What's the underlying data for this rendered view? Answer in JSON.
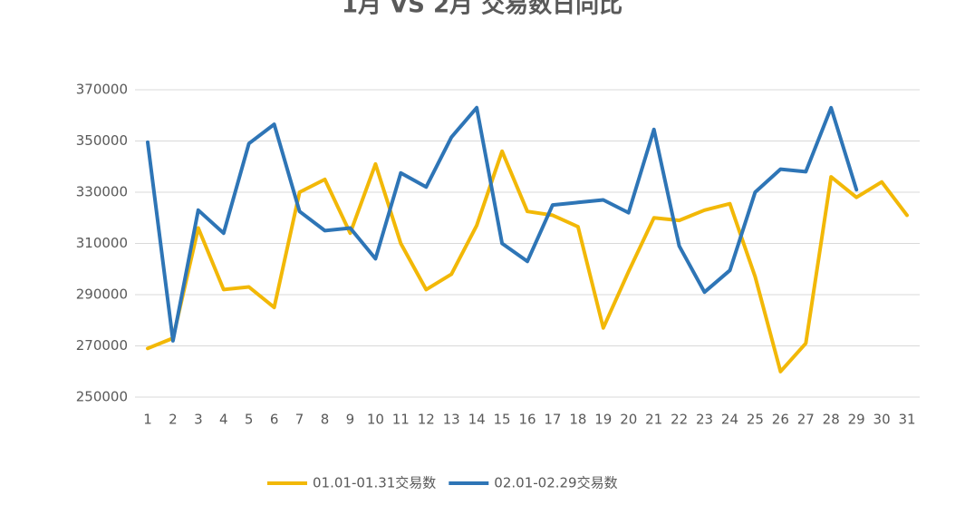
{
  "chart_data": {
    "type": "line",
    "title": "1月 VS 2月 交易数日同比",
    "categories": [
      "1",
      "2",
      "3",
      "4",
      "5",
      "6",
      "7",
      "8",
      "9",
      "10",
      "11",
      "12",
      "13",
      "14",
      "15",
      "16",
      "17",
      "18",
      "19",
      "20",
      "21",
      "22",
      "23",
      "24",
      "25",
      "26",
      "27",
      "28",
      "29",
      "30",
      "31"
    ],
    "series": [
      {
        "name": "01.01-01.31交易数",
        "color": "#f2b807",
        "values": [
          269000,
          273000,
          316000,
          292000,
          293000,
          285000,
          330000,
          335000,
          314000,
          341000,
          310000,
          292000,
          298000,
          317000,
          346000,
          322500,
          321000,
          316500,
          277000,
          299000,
          320000,
          319000,
          323000,
          325500,
          297000,
          260000,
          271000,
          336000,
          328000,
          334000,
          321000
        ]
      },
      {
        "name": "02.01-02.29交易数",
        "color": "#2e75b6",
        "values": [
          349500,
          272000,
          323000,
          314000,
          349000,
          356500,
          322500,
          315000,
          316000,
          304000,
          337500,
          332000,
          351500,
          363000,
          310000,
          303000,
          325000,
          326000,
          327000,
          322000,
          354500,
          309000,
          291000,
          299500,
          330000,
          339000,
          338000,
          363000,
          331000,
          null,
          null
        ]
      }
    ],
    "ylim": [
      250000,
      370000
    ],
    "yticks": [
      250000,
      270000,
      290000,
      310000,
      330000,
      350000,
      370000
    ],
    "grid": true,
    "legend": "bottom"
  }
}
